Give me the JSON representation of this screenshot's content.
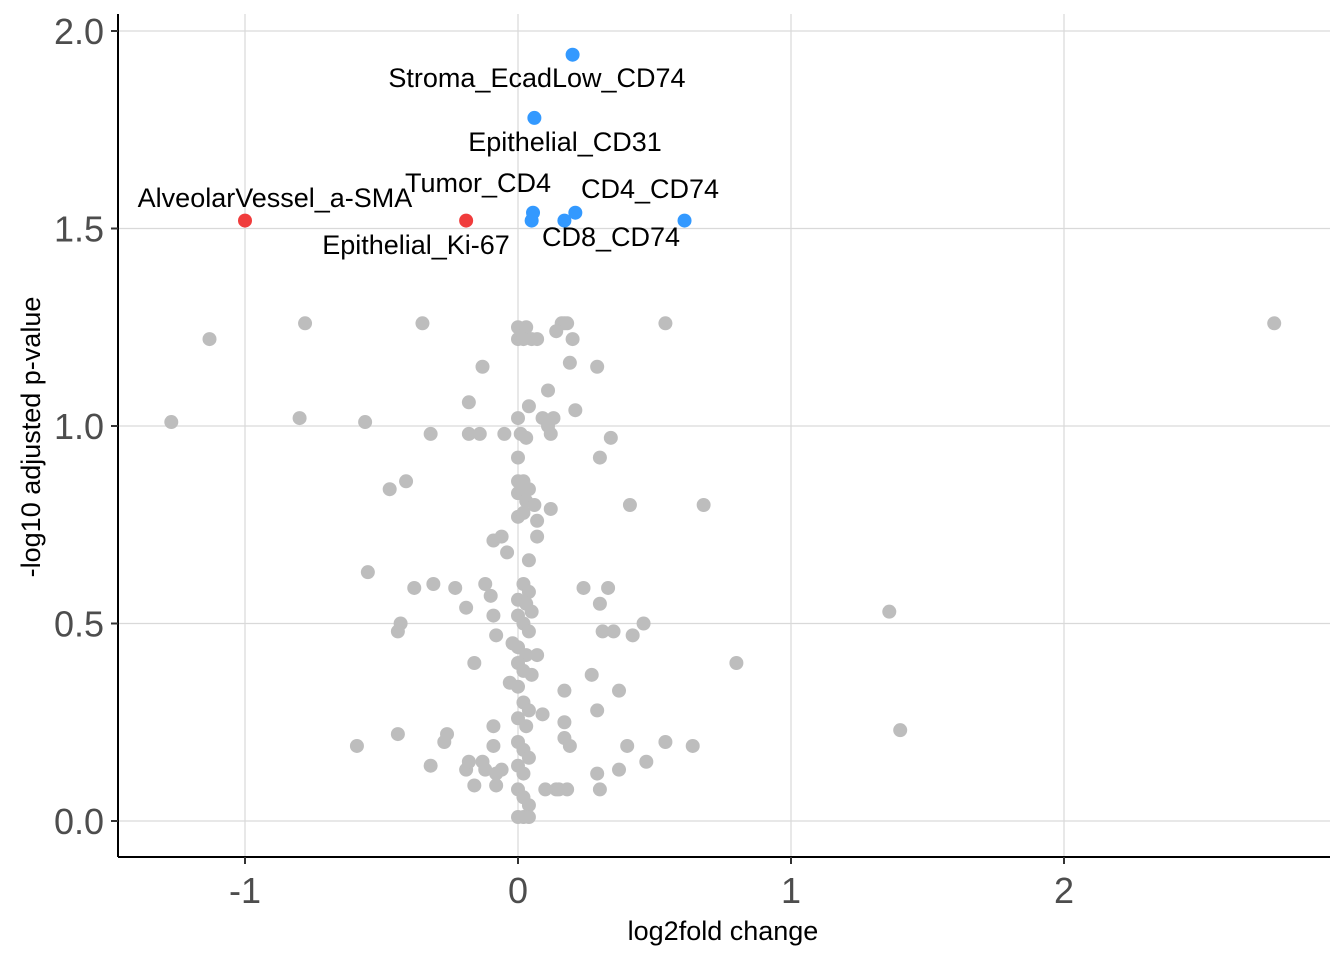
{
  "chart_data": {
    "type": "scatter",
    "title": "",
    "xlabel": "log2fold change",
    "ylabel": "-log10 adjusted p-value",
    "xlim": [
      -1.45,
      2.9
    ],
    "ylim": [
      -0.09,
      2.04
    ],
    "x_ticks": [
      -1,
      0,
      1,
      2
    ],
    "x_tick_labels": [
      "-1",
      "0",
      "1",
      "2"
    ],
    "y_ticks": [
      0.0,
      0.5,
      1.0,
      1.5,
      2.0
    ],
    "y_tick_labels": [
      "0.0",
      "0.5",
      "1.0",
      "1.5",
      "2.0"
    ],
    "grid": true,
    "colors": {
      "up": "#3399ff",
      "down": "#f03c3c",
      "ns": "#bdbdbd"
    },
    "labeled_points": [
      {
        "label": "Stroma_EcadLow_CD74",
        "x": 0.2,
        "y": 1.94,
        "group": "up"
      },
      {
        "label": "Epithelial_CD31",
        "x": 0.06,
        "y": 1.78,
        "group": "up"
      },
      {
        "label": "Tumor_CD4",
        "x": 0.055,
        "y": 1.54,
        "group": "up"
      },
      {
        "label": "CD4_CD74",
        "x": 0.21,
        "y": 1.54,
        "group": "up"
      },
      {
        "label": "CD8_CD74",
        "x": 0.61,
        "y": 1.52,
        "group": "up"
      },
      {
        "label": "AlveolarVessel_a-SMA",
        "x": -1.0,
        "y": 1.52,
        "group": "down"
      },
      {
        "label": "Epithelial_Ki-67",
        "x": -0.19,
        "y": 1.52,
        "group": "down"
      }
    ],
    "extra_highlight_points": [
      {
        "x": 0.05,
        "y": 1.52,
        "group": "up"
      },
      {
        "x": 0.17,
        "y": 1.52,
        "group": "up"
      }
    ],
    "ns_points": [
      [
        -1.27,
        1.01
      ],
      [
        -1.13,
        1.22
      ],
      [
        -0.78,
        1.26
      ],
      [
        -0.8,
        1.02
      ],
      [
        -0.56,
        1.01
      ],
      [
        -0.35,
        1.26
      ],
      [
        -0.32,
        0.98
      ],
      [
        -0.47,
        0.84
      ],
      [
        -0.41,
        0.86
      ],
      [
        -0.55,
        0.63
      ],
      [
        -0.38,
        0.59
      ],
      [
        -0.31,
        0.6
      ],
      [
        -0.23,
        0.59
      ],
      [
        -0.43,
        0.5
      ],
      [
        -0.44,
        0.48
      ],
      [
        -0.59,
        0.19
      ],
      [
        -0.44,
        0.22
      ],
      [
        -0.26,
        0.22
      ],
      [
        -0.27,
        0.2
      ],
      [
        -0.32,
        0.14
      ],
      [
        -0.19,
        0.13
      ],
      [
        -0.18,
        0.15
      ],
      [
        -0.16,
        0.4
      ],
      [
        -0.18,
        0.98
      ],
      [
        -0.14,
        0.98
      ],
      [
        -0.18,
        1.06
      ],
      [
        -0.13,
        1.15
      ],
      [
        -0.19,
        0.54
      ],
      [
        -0.12,
        0.6
      ],
      [
        -0.1,
        0.57
      ],
      [
        -0.09,
        0.52
      ],
      [
        -0.08,
        0.47
      ],
      [
        -0.09,
        0.24
      ],
      [
        -0.09,
        0.19
      ],
      [
        -0.16,
        0.09
      ],
      [
        -0.13,
        0.15
      ],
      [
        -0.12,
        0.13
      ],
      [
        -0.08,
        0.09
      ],
      [
        -0.08,
        0.12
      ],
      [
        -0.09,
        0.71
      ],
      [
        -0.06,
        0.72
      ],
      [
        -0.04,
        0.68
      ],
      [
        -0.05,
        0.98
      ],
      [
        -0.06,
        0.13
      ],
      [
        -0.03,
        0.35
      ],
      [
        -0.02,
        0.45
      ],
      [
        0.0,
        1.25
      ],
      [
        0.03,
        1.25
      ],
      [
        0.0,
        1.22
      ],
      [
        0.02,
        1.22
      ],
      [
        0.05,
        1.22
      ],
      [
        0.07,
        1.22
      ],
      [
        0.0,
        1.02
      ],
      [
        0.04,
        1.05
      ],
      [
        0.01,
        0.98
      ],
      [
        0.03,
        0.97
      ],
      [
        0.0,
        0.92
      ],
      [
        0.0,
        0.86
      ],
      [
        0.02,
        0.86
      ],
      [
        0.04,
        0.84
      ],
      [
        0.0,
        0.83
      ],
      [
        0.03,
        0.81
      ],
      [
        0.06,
        0.8
      ],
      [
        0.0,
        0.77
      ],
      [
        0.02,
        0.78
      ],
      [
        0.07,
        0.76
      ],
      [
        0.07,
        0.72
      ],
      [
        0.04,
        0.66
      ],
      [
        0.02,
        0.6
      ],
      [
        0.04,
        0.58
      ],
      [
        0.0,
        0.56
      ],
      [
        0.03,
        0.55
      ],
      [
        0.05,
        0.53
      ],
      [
        0.0,
        0.52
      ],
      [
        0.02,
        0.5
      ],
      [
        0.04,
        0.48
      ],
      [
        0.0,
        0.44
      ],
      [
        0.03,
        0.42
      ],
      [
        0.0,
        0.4
      ],
      [
        0.02,
        0.38
      ],
      [
        0.05,
        0.37
      ],
      [
        0.0,
        0.34
      ],
      [
        0.02,
        0.3
      ],
      [
        0.04,
        0.28
      ],
      [
        0.0,
        0.26
      ],
      [
        0.03,
        0.24
      ],
      [
        0.0,
        0.2
      ],
      [
        0.02,
        0.18
      ],
      [
        0.04,
        0.16
      ],
      [
        0.0,
        0.14
      ],
      [
        0.02,
        0.12
      ],
      [
        0.0,
        0.08
      ],
      [
        0.02,
        0.06
      ],
      [
        0.04,
        0.04
      ],
      [
        0.0,
        0.01
      ],
      [
        0.02,
        0.01
      ],
      [
        0.04,
        0.01
      ],
      [
        0.07,
        0.42
      ],
      [
        0.09,
        0.27
      ],
      [
        0.1,
        0.08
      ],
      [
        0.09,
        1.02
      ],
      [
        0.11,
        1.0
      ],
      [
        0.12,
        0.98
      ],
      [
        0.13,
        1.02
      ],
      [
        0.11,
        1.09
      ],
      [
        0.12,
        0.79
      ],
      [
        0.14,
        0.08
      ],
      [
        0.15,
        0.08
      ],
      [
        0.16,
        1.26
      ],
      [
        0.17,
        1.26
      ],
      [
        0.18,
        1.26
      ],
      [
        0.14,
        1.24
      ],
      [
        0.2,
        1.22
      ],
      [
        0.19,
        1.16
      ],
      [
        0.21,
        1.04
      ],
      [
        0.17,
        0.21
      ],
      [
        0.17,
        0.25
      ],
      [
        0.17,
        0.33
      ],
      [
        0.19,
        0.19
      ],
      [
        0.18,
        0.08
      ],
      [
        0.24,
        0.59
      ],
      [
        0.27,
        0.37
      ],
      [
        0.29,
        0.28
      ],
      [
        0.3,
        0.55
      ],
      [
        0.29,
        0.12
      ],
      [
        0.3,
        0.08
      ],
      [
        0.31,
        0.48
      ],
      [
        0.3,
        0.92
      ],
      [
        0.34,
        0.97
      ],
      [
        0.33,
        0.59
      ],
      [
        0.35,
        0.48
      ],
      [
        0.37,
        0.33
      ],
      [
        0.37,
        0.13
      ],
      [
        0.29,
        1.15
      ],
      [
        0.41,
        0.8
      ],
      [
        0.42,
        0.47
      ],
      [
        0.4,
        0.19
      ],
      [
        0.46,
        0.5
      ],
      [
        0.47,
        0.15
      ],
      [
        0.54,
        1.26
      ],
      [
        0.54,
        0.2
      ],
      [
        0.64,
        0.19
      ],
      [
        0.68,
        0.8
      ],
      [
        0.8,
        0.4
      ],
      [
        1.36,
        0.53
      ],
      [
        1.4,
        0.23
      ],
      [
        2.77,
        1.26
      ]
    ]
  }
}
